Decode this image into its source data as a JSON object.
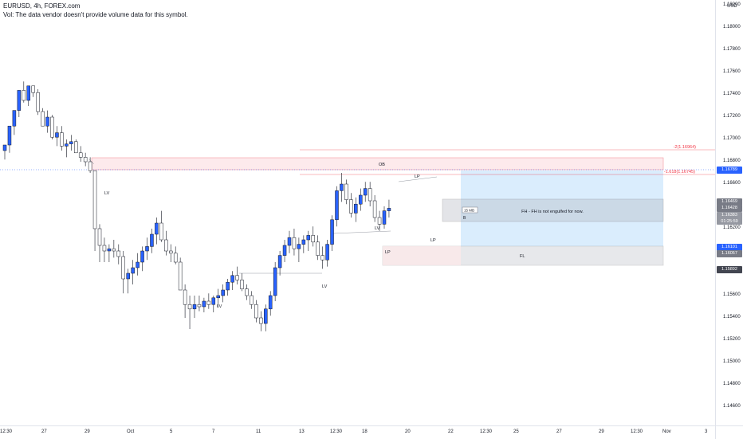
{
  "header": {
    "symbol_line": "EURUSD, 4h, FOREX.com",
    "volume_note": "Vol: The data vendor doesn't provide volume data for this symbol."
  },
  "price_axis": {
    "currency": "USD",
    "ticks": [
      "1.18200",
      "1.18000",
      "1.17800",
      "1.17600",
      "1.17400",
      "1.17200",
      "1.17000",
      "1.16800",
      "1.16600",
      "1.16400",
      "1.16200",
      "1.16000",
      "1.15800",
      "1.15600",
      "1.15400",
      "1.15200",
      "1.15000",
      "1.14800",
      "1.14600"
    ],
    "labels": [
      {
        "value": "1.16789",
        "color": "#2962ff"
      },
      {
        "value": "1.16469",
        "color": "#787b86"
      },
      {
        "value": "1.16428",
        "color": "#787b86"
      },
      {
        "value": "1.16383",
        "color": "#9598a1",
        "sub": "01:25:59"
      },
      {
        "value": "1.16101",
        "color": "#2962ff"
      },
      {
        "value": "1.16057",
        "color": "#787b86"
      },
      {
        "value": "1.15892",
        "color": "#434651"
      }
    ]
  },
  "time_axis": {
    "ticks": [
      "12:30",
      "27",
      "29",
      "Oct",
      "5",
      "7",
      "11",
      "13",
      "12:30",
      "18",
      "20",
      "22",
      "12:30",
      "25",
      "27",
      "29",
      "12:30",
      "Nov",
      "3"
    ]
  },
  "annotations": {
    "fib_minus2": "-2(1.16964)",
    "fib_1618": "-1.618(1.16745)",
    "ob": "OB",
    "fh_note": "FH - FH is not engulfed for now.",
    "fl": "FL",
    "lv_labels": [
      "LV",
      "LV",
      "LV",
      "LV"
    ],
    "lp_labels": [
      "LP",
      "LP",
      "LP"
    ],
    "tag_15m": "15 MB",
    "tag_b": "B"
  },
  "colors": {
    "up": "#2962ff",
    "down": "#ffffff",
    "wick": "#131722",
    "fib": "#f23645"
  }
}
